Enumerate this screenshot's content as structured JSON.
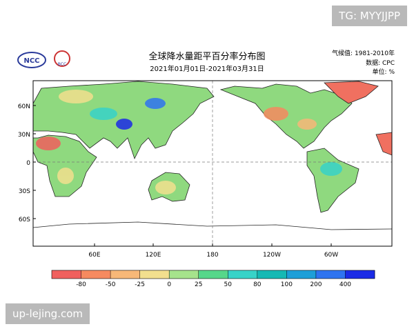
{
  "header": {
    "title": "全球降水量距平百分率分布图",
    "subtitle": "2021年01月01日-2021年03月31日",
    "logos": [
      "NCC",
      "BCC"
    ],
    "info": [
      "气候值: 1981-2010年",
      "数据: CPC",
      "单位: %"
    ]
  },
  "map": {
    "lat_labels": [
      "60N",
      "30N",
      "0",
      "30S",
      "60S"
    ],
    "lon_labels": [
      "60E",
      "120E",
      "180",
      "120W",
      "60W"
    ]
  },
  "colorbar": {
    "labels": [
      "-80",
      "-50",
      "-25",
      "0",
      "25",
      "50",
      "80",
      "100",
      "200",
      "400"
    ],
    "colors": [
      "#f0605e",
      "#f68a60",
      "#f7b878",
      "#f2df8e",
      "#a6e38c",
      "#56d78a",
      "#38d3c8",
      "#16b9b4",
      "#1e9fd8",
      "#2f74f0",
      "#1b2be6"
    ]
  },
  "watermarks": [
    "TG: MYYJJPP",
    "up-lejing.com"
  ]
}
